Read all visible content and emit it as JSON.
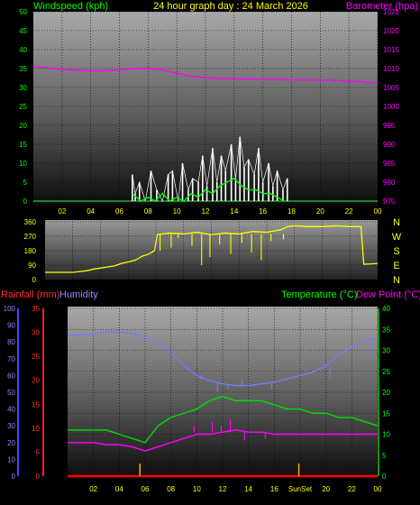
{
  "header": {
    "left": "Windspeed (kph)",
    "center": "24 hour graph day : 24 March 2026",
    "right": "Barometer (hpa)"
  },
  "colors": {
    "windspeed": "#ffffff",
    "windgust": "#00ff00",
    "barometer": "#ff00ff",
    "direction": "#ffff00",
    "humidity": "#7777ff",
    "temperature": "#00dd00",
    "dewpoint": "#ff00ff",
    "rainfall": "#ff0000",
    "sun": "#ffaa00",
    "label_green": "#00ff00",
    "label_yellow": "#ffff00",
    "label_magenta": "#ff00ff",
    "label_blue": "#8888ff",
    "label_red": "#ff3030"
  },
  "direction_panel": {
    "compass": [
      "N",
      "W",
      "S",
      "E",
      "N"
    ]
  },
  "lower_panel": {
    "label_rainfall": "Rainfall (mm)",
    "label_humidity": "Humidity",
    "label_temperature": "Temperature (°C)",
    "label_dewpoint": "Dew Point (°C)",
    "sun_markers": {
      "sunrise_hour": 5.6,
      "sunset_hour": 17.9,
      "label": "SunSet"
    }
  },
  "chart_data": [
    {
      "type": "line",
      "title": "24 hour graph day : 24 March 2026",
      "ylabel": "Windspeed (kph)",
      "ylabel_right": "Barometer (hpa)",
      "ylim": [
        0,
        50
      ],
      "ylim_right": [
        975,
        1025
      ],
      "yticks": [
        0,
        5,
        10,
        15,
        20,
        25,
        30,
        35,
        40,
        45,
        50
      ],
      "yticks_right": [
        975,
        980,
        985,
        990,
        995,
        1000,
        1005,
        1010,
        1015,
        1020,
        1025
      ],
      "xlim": [
        0,
        24
      ],
      "x_ticks": [
        "02",
        "04",
        "06",
        "08",
        "10",
        "12",
        "14",
        "16",
        "18",
        "20",
        "22",
        "00"
      ],
      "grid": true,
      "series": [
        {
          "name": "Barometer (hpa)",
          "axis": "right",
          "x": [
            0,
            1,
            2,
            3,
            4,
            5,
            6,
            7,
            8,
            9,
            10,
            11,
            12,
            13,
            14,
            15,
            16,
            17,
            18,
            19,
            20,
            21,
            22,
            23,
            24
          ],
          "values": [
            1010.5,
            1010.2,
            1009.8,
            1009.5,
            1009.4,
            1009.4,
            1009.6,
            1010,
            1010.1,
            1009.6,
            1008.8,
            1008,
            1007.6,
            1007.4,
            1007.3,
            1007.2,
            1007.1,
            1007.1,
            1007,
            1007,
            1006.9,
            1006.9,
            1006.7,
            1006.5,
            1006
          ]
        },
        {
          "name": "Windspeed (kph)",
          "axis": "left",
          "x": [
            6.9,
            7.1,
            7.4,
            7.8,
            8.2,
            8.6,
            9.0,
            9.4,
            9.7,
            10.1,
            10.4,
            10.8,
            11.1,
            11.5,
            11.8,
            12.1,
            12.5,
            12.8,
            13.1,
            13.4,
            13.8,
            14.1,
            14.4,
            14.7,
            15.0,
            15.4,
            15.7,
            16.0,
            16.4,
            16.7,
            17.0,
            17.4,
            17.7
          ],
          "values": [
            7,
            2,
            5,
            0,
            8,
            3,
            0,
            7,
            8,
            0,
            10,
            3,
            6,
            5,
            12,
            4,
            14,
            5,
            12,
            8,
            15,
            6,
            17,
            9,
            11,
            7,
            14,
            5,
            10,
            4,
            8,
            3,
            6
          ]
        },
        {
          "name": "Windgust (kph)",
          "axis": "left",
          "x": [
            6.9,
            7.5,
            8,
            8.5,
            9,
            9.5,
            10,
            10.5,
            11,
            11.5,
            12,
            12.5,
            13,
            13.5,
            14,
            14.5,
            15,
            15.5,
            16,
            16.5,
            17,
            17.5
          ],
          "values": [
            2,
            0,
            1,
            0,
            2,
            0,
            1,
            0,
            2,
            1,
            3,
            2,
            4,
            5,
            6,
            4,
            3,
            3,
            2,
            2,
            1,
            0
          ]
        }
      ]
    },
    {
      "type": "line",
      "ylim": [
        0,
        360
      ],
      "yticks": [
        0,
        90,
        180,
        270,
        360
      ],
      "xlim": [
        0,
        24
      ],
      "grid": true,
      "series": [
        {
          "name": "Wind Direction",
          "x": [
            0,
            2,
            3,
            3.5,
            5,
            5.5,
            6.5,
            7,
            7.5,
            7.9,
            8.1,
            9,
            10,
            11,
            12,
            13,
            14,
            15,
            16,
            17,
            17.5,
            18,
            19,
            20,
            21,
            22,
            22.8,
            23,
            24
          ],
          "values": [
            45,
            45,
            55,
            65,
            85,
            100,
            120,
            145,
            160,
            180,
            280,
            290,
            285,
            295,
            280,
            290,
            285,
            300,
            295,
            310,
            330,
            335,
            330,
            330,
            335,
            330,
            330,
            95,
            100
          ]
        }
      ]
    },
    {
      "type": "line",
      "xlim": [
        0,
        24
      ],
      "x_ticks": [
        "02",
        "04",
        "06",
        "08",
        "10",
        "12",
        "14",
        "16",
        "SunSet",
        "20",
        "22",
        "00"
      ],
      "axes": {
        "humidity": {
          "ylim": [
            0,
            100
          ],
          "yticks": [
            0,
            10,
            20,
            30,
            40,
            50,
            60,
            70,
            80,
            90,
            100
          ]
        },
        "rainfall": {
          "ylim": [
            0,
            35
          ],
          "yticks": [
            0,
            5,
            10,
            15,
            20,
            25,
            30,
            35
          ]
        },
        "temperature": {
          "ylim": [
            0,
            40
          ],
          "yticks": [
            0,
            5,
            10,
            15,
            20,
            25,
            30,
            35,
            40
          ]
        }
      },
      "grid": true,
      "series": [
        {
          "name": "Humidity",
          "axis": "humidity",
          "x": [
            0,
            1,
            2,
            3,
            4,
            5,
            6,
            7,
            8,
            9,
            10,
            11,
            12,
            13,
            14,
            15,
            16,
            17,
            18,
            19,
            20,
            21,
            22,
            23,
            24
          ],
          "values": [
            84,
            84,
            85,
            86,
            86,
            85,
            83,
            80,
            73,
            66,
            60,
            57,
            55,
            54,
            54,
            55,
            56,
            58,
            60,
            62,
            66,
            72,
            77,
            81,
            82
          ]
        },
        {
          "name": "Temperature (°C)",
          "axis": "temperature",
          "x": [
            0,
            1,
            2,
            3,
            4,
            5,
            6,
            6.5,
            7,
            8,
            9,
            10,
            11,
            12,
            13,
            14,
            15,
            16,
            17,
            18,
            19,
            20,
            21,
            22,
            23,
            24
          ],
          "values": [
            11,
            11,
            11,
            11,
            10,
            9,
            8,
            10,
            12,
            14,
            15,
            16,
            18,
            19,
            18,
            18,
            18,
            17,
            16,
            16,
            15,
            15,
            14,
            14,
            13,
            12
          ]
        },
        {
          "name": "Dew Point (°C)",
          "axis": "temperature",
          "x": [
            0,
            1,
            2,
            3,
            4,
            5,
            6,
            7,
            8,
            9,
            10,
            11,
            12,
            13,
            14,
            15,
            16,
            17,
            18,
            19,
            20,
            21,
            22,
            23,
            24
          ],
          "values": [
            8,
            8,
            8,
            7.5,
            7.5,
            7,
            6,
            7,
            8,
            9,
            10,
            10,
            10.5,
            11,
            10.5,
            10.5,
            10,
            10,
            10,
            10,
            10,
            10,
            10,
            10,
            10
          ]
        },
        {
          "name": "Rainfall (mm)",
          "axis": "rainfall",
          "x": [
            0,
            24
          ],
          "values": [
            0,
            0
          ]
        }
      ]
    }
  ]
}
